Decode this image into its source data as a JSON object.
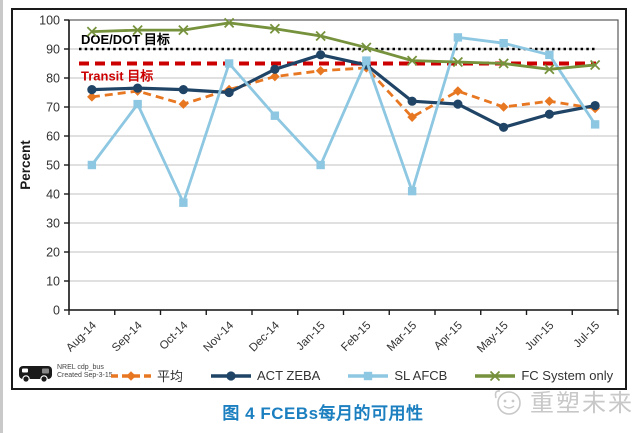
{
  "caption": "图 4 FCEBs每月的可用性",
  "watermark": {
    "text": "重塑未来"
  },
  "footer_note": {
    "line1": "NREL cdp_bus",
    "line2": "Created Sep-3-15"
  },
  "colors": {
    "caption": "#1B7FC0",
    "watermark": "#C8C8C8",
    "grid": "#C0C0C0",
    "axis": "#1a1a1a",
    "plot_border": "#595959",
    "tick_text": "#333333"
  },
  "chart_data": {
    "type": "line",
    "title": "",
    "xlabel": "",
    "ylabel": "Percent",
    "ylim": [
      0,
      100
    ],
    "ytick_step": 10,
    "grid": true,
    "legend_position": "bottom",
    "categories": [
      "Aug-14",
      "Sep-14",
      "Oct-14",
      "Nov-14",
      "Dec-14",
      "Jan-15",
      "Feb-15",
      "Mar-15",
      "Apr-15",
      "May-15",
      "Jun-15",
      "Jul-15"
    ],
    "series": [
      {
        "name": "平均",
        "color": "#E87722",
        "dash": "dashed",
        "marker": "diamond",
        "values": [
          73.5,
          75.5,
          71,
          76,
          80.5,
          82.5,
          83.5,
          66.5,
          75.5,
          70,
          72,
          69.5
        ]
      },
      {
        "name": "ACT ZEBA",
        "color": "#1F4466",
        "dash": "solid",
        "marker": "circle",
        "values": [
          76,
          76.5,
          76,
          75,
          83,
          88,
          84.5,
          72,
          71,
          63,
          67.5,
          70.5
        ]
      },
      {
        "name": "SL AFCB",
        "color": "#8DC7E1",
        "dash": "solid",
        "marker": "square",
        "values": [
          50,
          71,
          37,
          85,
          67,
          50,
          86,
          41,
          94,
          92,
          88,
          64
        ]
      },
      {
        "name": "FC System only",
        "color": "#76923C",
        "dash": "solid",
        "marker": "x",
        "values": [
          96,
          96.5,
          96.5,
          99,
          97,
          94.5,
          90.5,
          86,
          85.5,
          85,
          83,
          84.5
        ]
      }
    ],
    "target_lines": [
      {
        "label": "DOE/DOT 目标",
        "value": 90,
        "color": "#000000",
        "style": "dotted"
      },
      {
        "label": "Transit 目标",
        "value": 85,
        "color": "#CC0000",
        "style": "dashed"
      }
    ]
  }
}
